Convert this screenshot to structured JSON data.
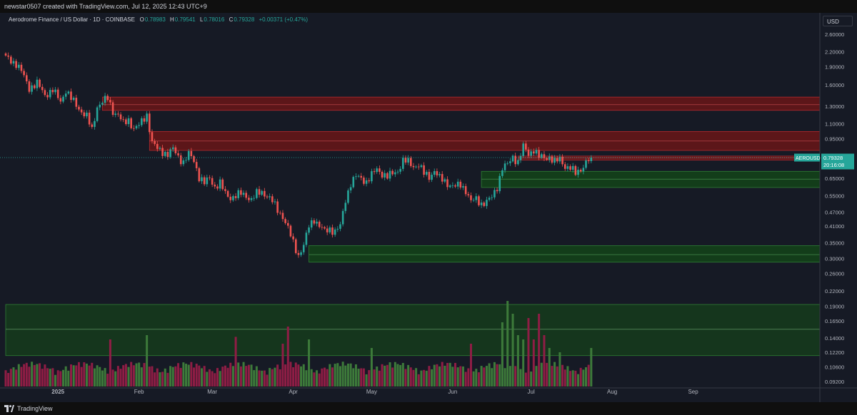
{
  "header": {
    "text": "newstar0507 created with TradingView.com, Jul 12, 2025 12:43 UTC+9"
  },
  "legend": {
    "symbol": "Aerodrome Finance / US Dollar · 1D · COINBASE",
    "open_label": "O",
    "open": "0.78983",
    "high_label": "H",
    "high": "0.79541",
    "low_label": "L",
    "low": "0.78016",
    "close_label": "C",
    "close": "0.79328",
    "change": "+0.00371 (+0.47%)"
  },
  "currency": "USD",
  "price_badge": {
    "ticker": "AEROUSD",
    "price": "0.79328",
    "countdown": "20:16:08"
  },
  "footer": {
    "brand": "TradingView"
  },
  "colors": {
    "up": "#26a69a",
    "down": "#ef5350",
    "vol_up": "#3d7a3a",
    "vol_down": "#8f1d45",
    "resistance_zone": "#5c1619",
    "support_zone": "#133d1a",
    "volume_zone": "#15361d",
    "background": "#161a25"
  },
  "chart_data": {
    "type": "candlestick",
    "title": "Aerodrome Finance / US Dollar",
    "interval": "1D",
    "exchange": "COINBASE",
    "scale": "log",
    "y_ticks": [
      "2.60000",
      "2.20000",
      "1.90000",
      "1.60000",
      "1.30000",
      "1.10000",
      "0.95000",
      "0.75000",
      "0.65000",
      "0.55000",
      "0.47000",
      "0.41000",
      "0.35000",
      "0.30000",
      "0.26000",
      "0.22000",
      "0.19000",
      "0.16500",
      "0.14000",
      "0.12200",
      "0.10600",
      "0.09200"
    ],
    "x_ticks": [
      "2025",
      "Feb",
      "Mar",
      "Apr",
      "May",
      "Jun",
      "Jul",
      "Aug",
      "Sep"
    ],
    "grid": false,
    "start_date": "2024-12-12",
    "last_close": 0.79328,
    "close_path": [
      [
        0,
        2.08
      ],
      [
        4,
        1.96
      ],
      [
        6,
        1.82
      ],
      [
        9,
        1.55
      ],
      [
        12,
        1.62
      ],
      [
        15,
        1.45
      ],
      [
        18,
        1.52
      ],
      [
        21,
        1.36
      ],
      [
        23,
        1.52
      ],
      [
        25,
        1.4
      ],
      [
        28,
        1.27
      ],
      [
        31,
        1.18
      ],
      [
        33,
        1.03
      ],
      [
        35,
        1.3
      ],
      [
        37,
        1.36
      ],
      [
        39,
        1.4
      ],
      [
        41,
        1.24
      ],
      [
        43,
        1.2
      ],
      [
        45,
        1.1
      ],
      [
        47,
        1.14
      ],
      [
        49,
        1.05
      ],
      [
        51,
        1.08
      ],
      [
        54,
        1.2
      ],
      [
        56,
        0.92
      ],
      [
        58,
        0.86
      ],
      [
        60,
        0.84
      ],
      [
        62,
        0.82
      ],
      [
        64,
        0.86
      ],
      [
        66,
        0.8
      ],
      [
        68,
        0.76
      ],
      [
        70,
        0.82
      ],
      [
        72,
        0.77
      ],
      [
        74,
        0.66
      ],
      [
        76,
        0.62
      ],
      [
        78,
        0.65
      ],
      [
        80,
        0.6
      ],
      [
        82,
        0.62
      ],
      [
        84,
        0.56
      ],
      [
        86,
        0.54
      ],
      [
        88,
        0.55
      ],
      [
        90,
        0.56
      ],
      [
        92,
        0.55
      ],
      [
        94,
        0.53
      ],
      [
        96,
        0.56
      ],
      [
        98,
        0.57
      ],
      [
        100,
        0.55
      ],
      [
        102,
        0.52
      ],
      [
        104,
        0.48
      ],
      [
        106,
        0.45
      ],
      [
        108,
        0.4
      ],
      [
        110,
        0.35
      ],
      [
        112,
        0.31
      ],
      [
        114,
        0.34
      ],
      [
        116,
        0.41
      ],
      [
        118,
        0.44
      ],
      [
        120,
        0.41
      ],
      [
        122,
        0.39
      ],
      [
        124,
        0.4
      ],
      [
        126,
        0.39
      ],
      [
        128,
        0.41
      ],
      [
        130,
        0.53
      ],
      [
        132,
        0.62
      ],
      [
        134,
        0.66
      ],
      [
        136,
        0.65
      ],
      [
        138,
        0.63
      ],
      [
        140,
        0.67
      ],
      [
        142,
        0.71
      ],
      [
        144,
        0.68
      ],
      [
        146,
        0.66
      ],
      [
        148,
        0.68
      ],
      [
        150,
        0.7
      ],
      [
        152,
        0.77
      ],
      [
        154,
        0.76
      ],
      [
        156,
        0.73
      ],
      [
        158,
        0.74
      ],
      [
        160,
        0.68
      ],
      [
        162,
        0.66
      ],
      [
        164,
        0.7
      ],
      [
        166,
        0.65
      ],
      [
        168,
        0.63
      ],
      [
        170,
        0.61
      ],
      [
        172,
        0.6
      ],
      [
        174,
        0.61
      ],
      [
        176,
        0.58
      ],
      [
        178,
        0.52
      ],
      [
        180,
        0.53
      ],
      [
        182,
        0.51
      ],
      [
        184,
        0.52
      ],
      [
        186,
        0.54
      ],
      [
        188,
        0.6
      ],
      [
        190,
        0.72
      ],
      [
        192,
        0.74
      ],
      [
        194,
        0.8
      ],
      [
        196,
        0.76
      ],
      [
        198,
        0.88
      ],
      [
        200,
        0.82
      ],
      [
        202,
        0.86
      ],
      [
        204,
        0.8
      ],
      [
        206,
        0.79
      ],
      [
        208,
        0.8
      ],
      [
        210,
        0.76
      ],
      [
        212,
        0.78
      ],
      [
        214,
        0.73
      ],
      [
        216,
        0.72
      ],
      [
        218,
        0.68
      ],
      [
        220,
        0.71
      ],
      [
        222,
        0.76
      ],
      [
        224,
        0.79
      ]
    ],
    "zones": [
      {
        "kind": "resistance",
        "from": "2025-01-18",
        "lo": 1.25,
        "hi": 1.42,
        "mid": 1.32
      },
      {
        "kind": "resistance",
        "from": "2025-02-05",
        "lo": 0.85,
        "hi": 1.02,
        "mid": 0.93
      },
      {
        "kind": "resistance",
        "from": "2025-06-26",
        "lo": 0.775,
        "hi": 0.805,
        "mid": 0.79
      },
      {
        "kind": "support",
        "from": "2025-06-12",
        "lo": 0.595,
        "hi": 0.695,
        "mid": 0.645
      },
      {
        "kind": "support",
        "from": "2025-04-07",
        "lo": 0.29,
        "hi": 0.34,
        "mid": 0.312
      }
    ],
    "volume_zone": {
      "from": "2024-12-12",
      "lo": 0.118,
      "hi": 0.193,
      "mid": 0.152
    },
    "volume_note": "overlay histogram, relative scale",
    "volume_spikes": [
      [
        40,
        0.55
      ],
      [
        54,
        0.6
      ],
      [
        88,
        0.58
      ],
      [
        106,
        0.5
      ],
      [
        108,
        0.7
      ],
      [
        116,
        0.55
      ],
      [
        140,
        0.45
      ],
      [
        178,
        0.5
      ],
      [
        190,
        0.75
      ],
      [
        192,
        1.0
      ],
      [
        194,
        0.85
      ],
      [
        196,
        0.6
      ],
      [
        198,
        0.55
      ],
      [
        200,
        0.8
      ],
      [
        202,
        0.55
      ],
      [
        204,
        0.85
      ],
      [
        206,
        0.6
      ],
      [
        208,
        0.45
      ],
      [
        212,
        0.4
      ],
      [
        224,
        0.45
      ]
    ]
  }
}
